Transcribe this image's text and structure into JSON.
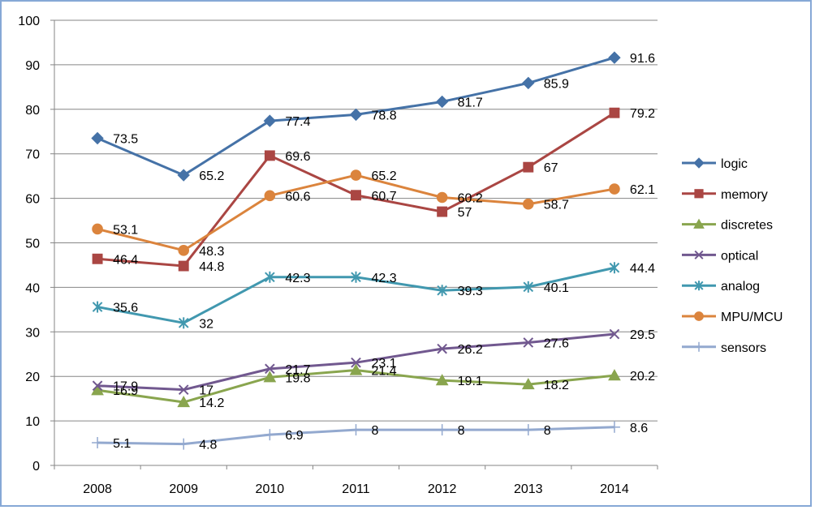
{
  "chart_data": {
    "type": "line",
    "categories": [
      "2008",
      "2009",
      "2010",
      "2011",
      "2012",
      "2013",
      "2014"
    ],
    "ylim": [
      0,
      100
    ],
    "yticks": [
      0,
      10,
      20,
      30,
      40,
      50,
      60,
      70,
      80,
      90,
      100
    ],
    "ytick_labels": [
      "0",
      "10",
      "20",
      "30",
      "40",
      "50",
      "60",
      "70",
      "80",
      "90",
      "100"
    ],
    "grid": true,
    "legend_position": "right",
    "series": [
      {
        "name": "logic",
        "color": "#4572a7",
        "marker": "diamond",
        "values": [
          73.5,
          65.2,
          77.4,
          78.8,
          81.7,
          85.9,
          91.6
        ],
        "labels": [
          "73.5",
          "65.2",
          "77.4",
          "78.8",
          "81.7",
          "85.9",
          "91.6"
        ]
      },
      {
        "name": "memory",
        "color": "#aa4643",
        "marker": "square",
        "values": [
          46.4,
          44.8,
          69.6,
          60.7,
          57,
          67,
          79.2
        ],
        "labels": [
          "46.4",
          "44.8",
          "69.6",
          "60.7",
          "57",
          "67",
          "79.2"
        ]
      },
      {
        "name": "discretes",
        "color": "#89a54e",
        "marker": "triangle",
        "values": [
          16.9,
          14.2,
          19.8,
          21.4,
          19.1,
          18.2,
          20.2
        ],
        "labels": [
          "16.9",
          "14.2",
          "19.8",
          "21.4",
          "19.1",
          "18.2",
          "20.2"
        ]
      },
      {
        "name": "optical",
        "color": "#71588f",
        "marker": "x",
        "values": [
          17.9,
          17,
          21.7,
          23.1,
          26.2,
          27.6,
          29.5
        ],
        "labels": [
          "17.9",
          "17",
          "21.7",
          "23.1",
          "26.2",
          "27.6",
          "29.5"
        ]
      },
      {
        "name": "analog",
        "color": "#4198af",
        "marker": "star",
        "values": [
          35.6,
          32,
          42.3,
          42.3,
          39.3,
          40.1,
          44.4
        ],
        "labels": [
          "35.6",
          "32",
          "42.3",
          "42.3",
          "39.3",
          "40.1",
          "44.4"
        ]
      },
      {
        "name": "MPU/MCU",
        "color": "#db843d",
        "marker": "circle",
        "values": [
          53.1,
          48.3,
          60.6,
          65.2,
          60.2,
          58.7,
          62.1
        ],
        "labels": [
          "53.1",
          "48.3",
          "60.6",
          "65.2",
          "60.2",
          "58.7",
          "62.1"
        ]
      },
      {
        "name": "sensors",
        "color": "#93a9cf",
        "marker": "plus",
        "values": [
          5.1,
          4.8,
          6.9,
          8,
          8,
          8,
          8.6
        ],
        "labels": [
          "5.1",
          "4.8",
          "6.9",
          "8",
          "8",
          "8",
          "8.6"
        ]
      }
    ]
  }
}
